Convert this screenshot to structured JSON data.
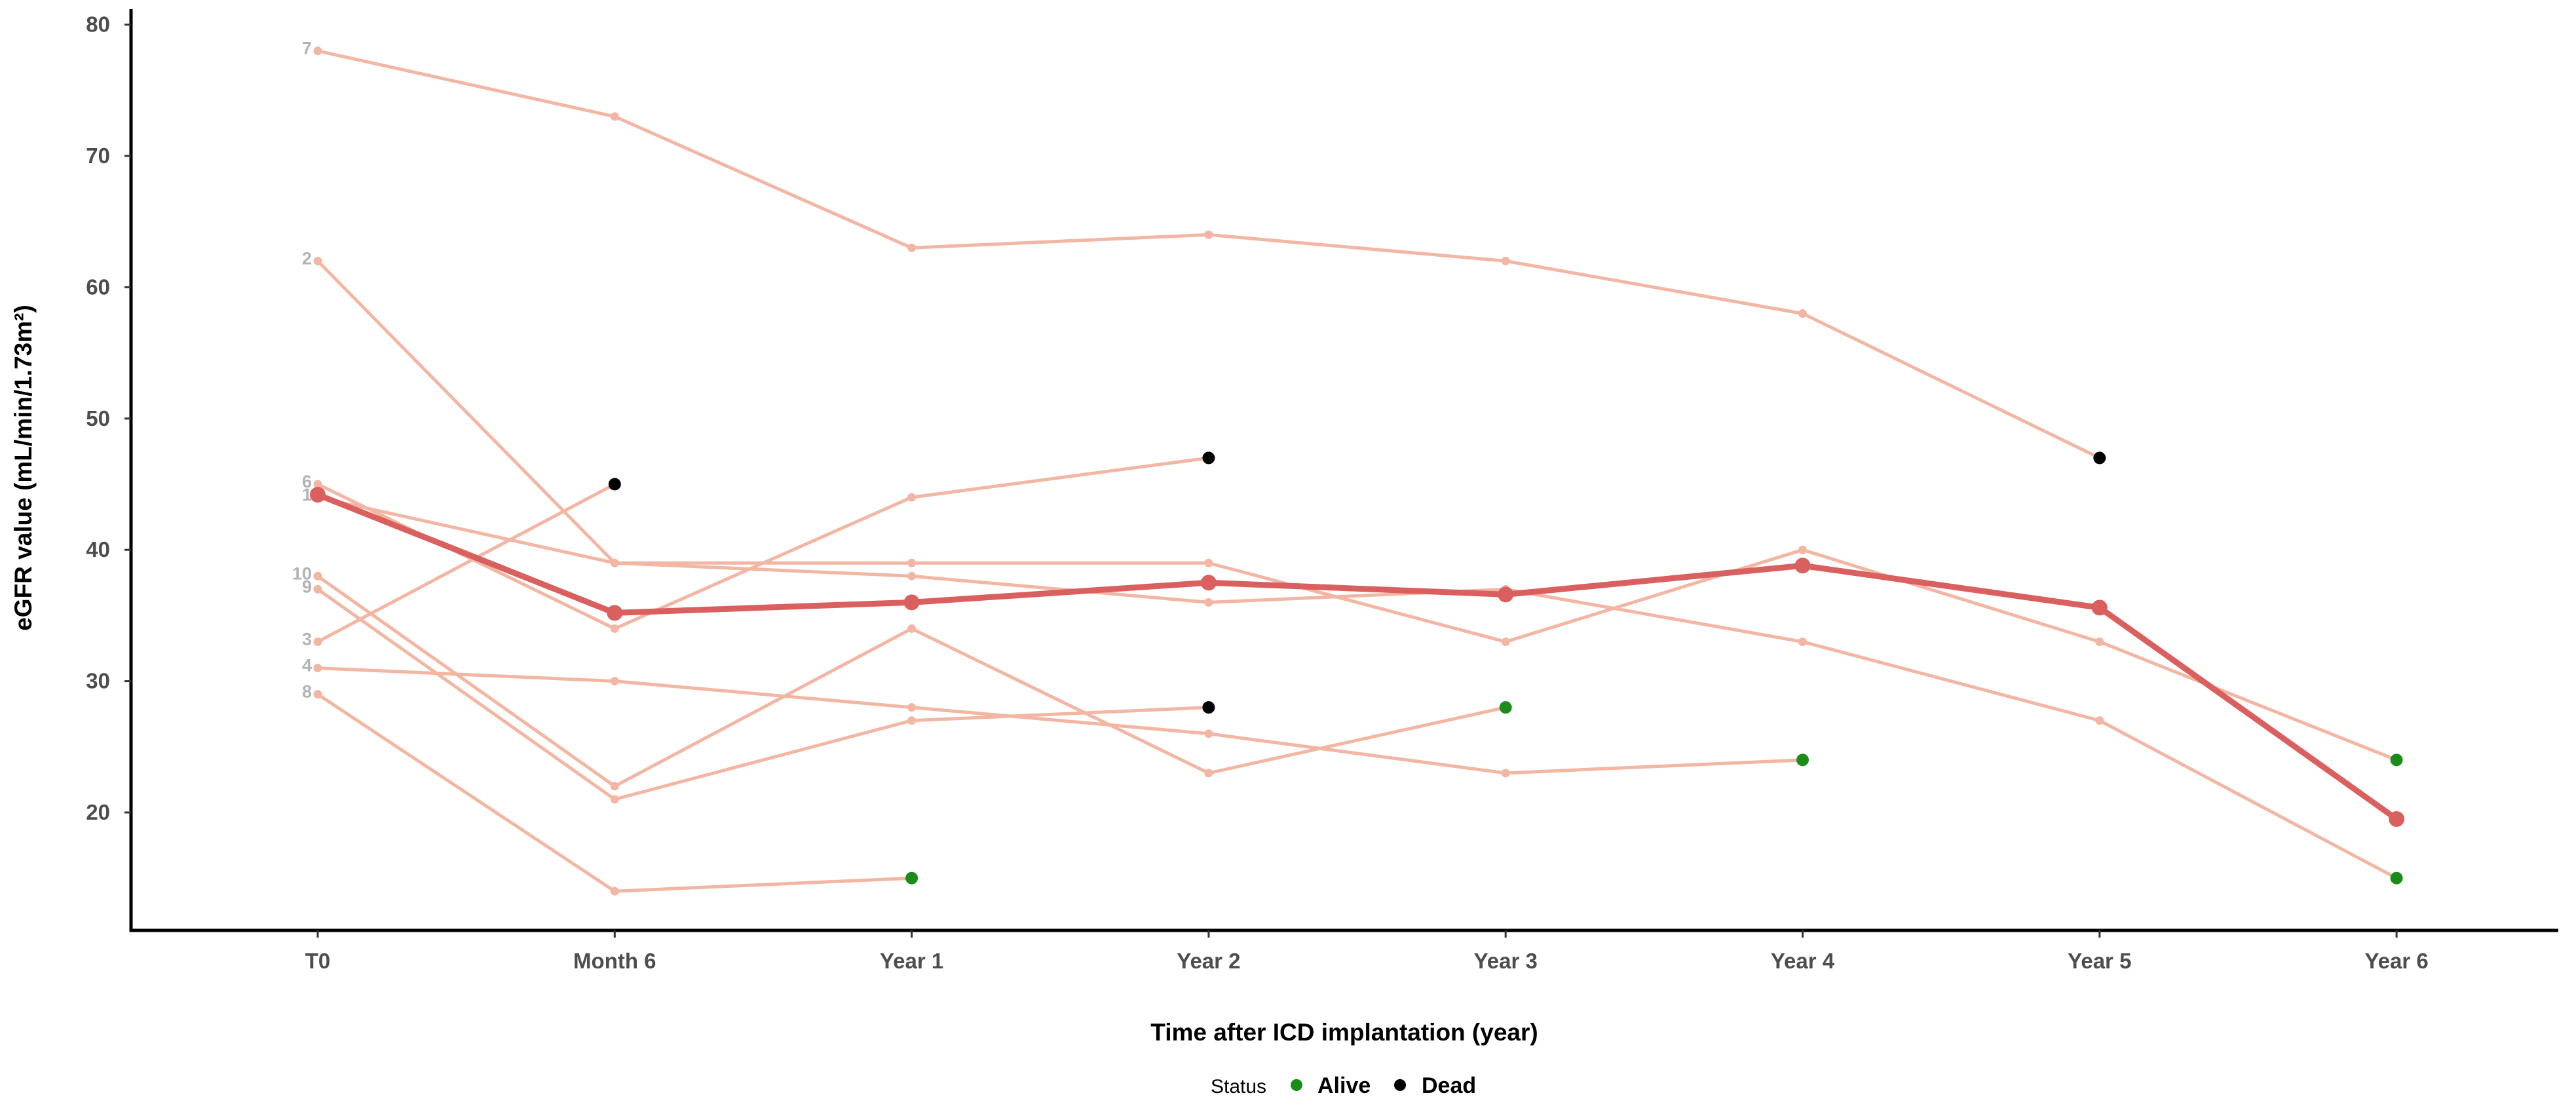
{
  "chart_data": {
    "type": "line",
    "title": "",
    "xlabel": "Time after ICD implantation (year)",
    "ylabel": "eGFR value (mL/min/1.73m²)",
    "categories": [
      "T0",
      "Month 6",
      "Year 1",
      "Year 2",
      "Year 3",
      "Year 4",
      "Year 5",
      "Year 6"
    ],
    "y_ticks": [
      20,
      30,
      40,
      50,
      60,
      70,
      80
    ],
    "ylim": [
      12,
      81
    ],
    "grid": false,
    "colors": {
      "patient": "#f2b6a3",
      "mean": "#d9605e",
      "alive": "#1a8c1a",
      "dead": "#000000",
      "label": "#b3b3b3"
    },
    "series": [
      {
        "name": "7",
        "values": [
          78,
          73,
          63,
          64,
          62,
          58,
          47,
          null
        ],
        "status": "Dead"
      },
      {
        "name": "2",
        "values": [
          62,
          39,
          39,
          39,
          33,
          40,
          33,
          24
        ],
        "status": "Alive"
      },
      {
        "name": "6",
        "values": [
          45,
          34,
          44,
          47,
          null,
          null,
          null,
          null
        ],
        "status": "Dead"
      },
      {
        "name": "1",
        "values": [
          44,
          39,
          38,
          36,
          37,
          33,
          27,
          15
        ],
        "status": "Alive"
      },
      {
        "name": "10",
        "values": [
          38,
          22,
          34,
          23,
          28,
          null,
          null,
          null
        ],
        "status": "Alive"
      },
      {
        "name": "9",
        "values": [
          37,
          21,
          27,
          28,
          null,
          null,
          null,
          null
        ],
        "status": "Dead"
      },
      {
        "name": "3",
        "values": [
          33,
          45,
          null,
          null,
          null,
          null,
          null,
          null
        ],
        "status": "Dead"
      },
      {
        "name": "4",
        "values": [
          31,
          30,
          28,
          26,
          23,
          24,
          null,
          null
        ],
        "status": "Alive"
      },
      {
        "name": "8",
        "values": [
          29,
          14,
          15,
          null,
          null,
          null,
          null,
          null
        ],
        "status": "Alive"
      }
    ],
    "mean_series": {
      "name": "Mean",
      "values": [
        44.2,
        35.2,
        36,
        37.5,
        36.6,
        38.8,
        35.6,
        19.5
      ]
    },
    "legend": {
      "title": "Status",
      "position": "bottom",
      "items": [
        "Alive",
        "Dead"
      ]
    }
  }
}
